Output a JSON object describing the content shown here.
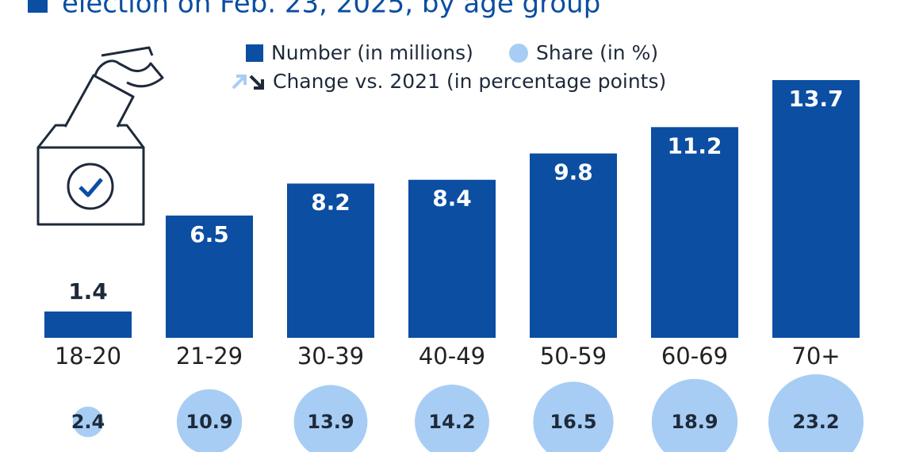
{
  "chart_data": {
    "type": "bar",
    "title": "election on Feb. 23, 2025, by age group",
    "legend": [
      "Number (in millions)",
      "Share (in %)",
      "Change vs. 2021 (in percentage points)"
    ],
    "categories": [
      "18-20",
      "21-29",
      "30-39",
      "40-49",
      "50-59",
      "60-69",
      "70+"
    ],
    "series": [
      {
        "name": "Number (in millions)",
        "color": "#0b4ea2",
        "values": [
          1.4,
          6.5,
          8.2,
          8.4,
          9.8,
          11.2,
          13.7
        ]
      },
      {
        "name": "Share (in %)",
        "color": "#a7cdf4",
        "values": [
          2.4,
          10.9,
          13.9,
          14.2,
          16.5,
          18.9,
          23.2
        ]
      }
    ]
  }
}
